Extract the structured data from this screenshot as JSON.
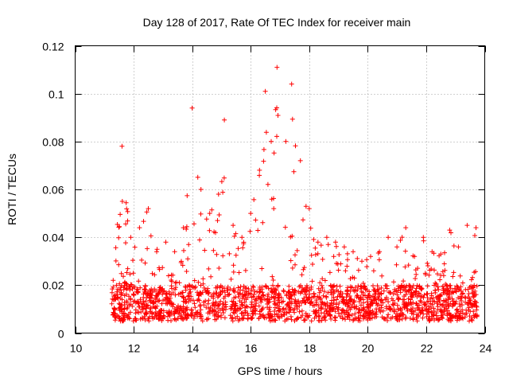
{
  "chart_data": {
    "type": "scatter",
    "title": "Day 128 of 2017, Rate Of TEC Index for receiver main",
    "xlabel": "GPS time / hours",
    "ylabel": "ROTI / TECUs",
    "xlim": [
      10,
      24
    ],
    "ylim": [
      0,
      0.12
    ],
    "x_ticks": [
      10,
      12,
      14,
      16,
      18,
      20,
      22,
      24
    ],
    "x_tick_labels": [
      "10",
      "12",
      "14",
      "16",
      "18",
      "20",
      "22",
      "24"
    ],
    "y_ticks": [
      0,
      0.02,
      0.04,
      0.06,
      0.08,
      0.1,
      0.12
    ],
    "y_tick_labels": [
      "0",
      "0.02",
      "0.04",
      "0.06",
      "0.08",
      "0.1",
      "0.12"
    ],
    "grid": true,
    "marker": "+",
    "color": "#ff0000",
    "data_range_hours": [
      11.25,
      23.75
    ],
    "envelope": [
      [
        11.3,
        0.006,
        0.022
      ],
      [
        11.6,
        0.006,
        0.078
      ],
      [
        11.9,
        0.006,
        0.04
      ],
      [
        12.2,
        0.006,
        0.044
      ],
      [
        12.5,
        0.006,
        0.052
      ],
      [
        12.8,
        0.006,
        0.035
      ],
      [
        13.1,
        0.006,
        0.038
      ],
      [
        13.4,
        0.006,
        0.034
      ],
      [
        13.7,
        0.006,
        0.044
      ],
      [
        14.0,
        0.006,
        0.094
      ],
      [
        14.3,
        0.006,
        0.06
      ],
      [
        14.6,
        0.006,
        0.05
      ],
      [
        14.9,
        0.006,
        0.058
      ],
      [
        15.1,
        0.006,
        0.089
      ],
      [
        15.4,
        0.006,
        0.045
      ],
      [
        15.7,
        0.006,
        0.04
      ],
      [
        16.0,
        0.006,
        0.05
      ],
      [
        16.3,
        0.006,
        0.068
      ],
      [
        16.5,
        0.006,
        0.101
      ],
      [
        16.7,
        0.006,
        0.08
      ],
      [
        16.9,
        0.006,
        0.111
      ],
      [
        17.2,
        0.006,
        0.08
      ],
      [
        17.4,
        0.006,
        0.104
      ],
      [
        17.7,
        0.006,
        0.072
      ],
      [
        18.0,
        0.006,
        0.052
      ],
      [
        18.3,
        0.006,
        0.038
      ],
      [
        18.6,
        0.006,
        0.04
      ],
      [
        18.9,
        0.006,
        0.038
      ],
      [
        19.2,
        0.006,
        0.036
      ],
      [
        19.5,
        0.006,
        0.034
      ],
      [
        19.8,
        0.006,
        0.03
      ],
      [
        20.1,
        0.006,
        0.032
      ],
      [
        20.4,
        0.006,
        0.034
      ],
      [
        20.7,
        0.006,
        0.04
      ],
      [
        21.0,
        0.006,
        0.036
      ],
      [
        21.3,
        0.006,
        0.044
      ],
      [
        21.6,
        0.006,
        0.032
      ],
      [
        21.9,
        0.006,
        0.04
      ],
      [
        22.2,
        0.006,
        0.034
      ],
      [
        22.5,
        0.006,
        0.033
      ],
      [
        22.8,
        0.006,
        0.043
      ],
      [
        23.1,
        0.006,
        0.036
      ],
      [
        23.4,
        0.006,
        0.045
      ],
      [
        23.7,
        0.006,
        0.044
      ]
    ],
    "series": [
      {
        "name": "ROTI",
        "points_per_hour": 150,
        "typical_min": 0.005,
        "typical_max": 0.02
      }
    ]
  }
}
